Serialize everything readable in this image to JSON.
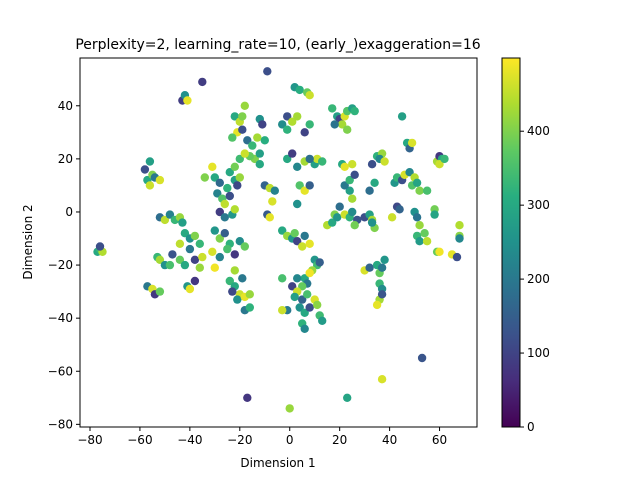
{
  "chart_data": {
    "type": "scatter",
    "title": "Perplexity=2, learning_rate=10, (early_)exaggeration=16",
    "xlabel": "Dimension 1",
    "ylabel": "Dimension 2",
    "xlim": [
      -84,
      75
    ],
    "ylim": [
      -81,
      58
    ],
    "xticks": [
      -80,
      -60,
      -40,
      -20,
      0,
      20,
      40,
      60
    ],
    "yticks": [
      -80,
      -60,
      -40,
      -20,
      0,
      20,
      40
    ],
    "colorbar": {
      "ticks": [
        0,
        100,
        200,
        300,
        400
      ],
      "range": [
        0,
        499
      ],
      "colormap": "viridis"
    },
    "grid": false,
    "point_color_encoding": "point index (0-499)",
    "points": [
      {
        "x": -77,
        "y": -15,
        "v": 300
      },
      {
        "x": -76,
        "y": -14,
        "v": 330
      },
      {
        "x": -75,
        "y": -15,
        "v": 440
      },
      {
        "x": -76,
        "y": -13,
        "v": 120
      },
      {
        "x": -58,
        "y": 16,
        "v": 120
      },
      {
        "x": -57,
        "y": 12,
        "v": 300
      },
      {
        "x": -56,
        "y": 10,
        "v": 460
      },
      {
        "x": -55,
        "y": 14,
        "v": 400
      },
      {
        "x": -56,
        "y": 19,
        "v": 280
      },
      {
        "x": -54,
        "y": 13,
        "v": 200
      },
      {
        "x": -52,
        "y": 12,
        "v": 470
      },
      {
        "x": -57,
        "y": -28,
        "v": 200
      },
      {
        "x": -55,
        "y": -29,
        "v": 470
      },
      {
        "x": -54,
        "y": -31,
        "v": 80
      },
      {
        "x": -52,
        "y": -30,
        "v": 380
      },
      {
        "x": -53,
        "y": -17,
        "v": 330
      },
      {
        "x": -52,
        "y": -18,
        "v": 430
      },
      {
        "x": -50,
        "y": -20,
        "v": 250
      },
      {
        "x": -48,
        "y": -20,
        "v": 350
      },
      {
        "x": -52,
        "y": -2,
        "v": 180
      },
      {
        "x": -50,
        "y": -3,
        "v": 450
      },
      {
        "x": -48,
        "y": -1,
        "v": 220
      },
      {
        "x": -46,
        "y": -3,
        "v": 330
      },
      {
        "x": -44,
        "y": -2,
        "v": 420
      },
      {
        "x": -43,
        "y": -4,
        "v": 280
      },
      {
        "x": -47,
        "y": -16,
        "v": 130
      },
      {
        "x": -43,
        "y": 42,
        "v": 90
      },
      {
        "x": -42,
        "y": 44,
        "v": 250
      },
      {
        "x": -41,
        "y": 42,
        "v": 480
      },
      {
        "x": -35,
        "y": 49,
        "v": 90
      },
      {
        "x": -42,
        "y": -8,
        "v": 300
      },
      {
        "x": -40,
        "y": -10,
        "v": 250
      },
      {
        "x": -38,
        "y": -9,
        "v": 400
      },
      {
        "x": -36,
        "y": -12,
        "v": 330
      },
      {
        "x": -44,
        "y": -12,
        "v": 450
      },
      {
        "x": -40,
        "y": -14,
        "v": 200
      },
      {
        "x": -38,
        "y": -18,
        "v": 100
      },
      {
        "x": -35,
        "y": -17,
        "v": 460
      },
      {
        "x": -44,
        "y": -18,
        "v": 380
      },
      {
        "x": -42,
        "y": -20,
        "v": 300
      },
      {
        "x": -36,
        "y": -21,
        "v": 420
      },
      {
        "x": -41,
        "y": -28,
        "v": 260
      },
      {
        "x": -40,
        "y": -29,
        "v": 480
      },
      {
        "x": -38,
        "y": -26,
        "v": 80
      },
      {
        "x": -34,
        "y": 13,
        "v": 400
      },
      {
        "x": -31,
        "y": 17,
        "v": 480
      },
      {
        "x": -30,
        "y": 13,
        "v": 300
      },
      {
        "x": -28,
        "y": 11,
        "v": 170
      },
      {
        "x": -29,
        "y": 7,
        "v": 220
      },
      {
        "x": -27,
        "y": 5,
        "v": 360
      },
      {
        "x": -26,
        "y": 3,
        "v": 450
      },
      {
        "x": -24,
        "y": 6,
        "v": 120
      },
      {
        "x": -28,
        "y": 0,
        "v": 90
      },
      {
        "x": -26,
        "y": -2,
        "v": 200
      },
      {
        "x": -23,
        "y": -1,
        "v": 260
      },
      {
        "x": -22,
        "y": 1,
        "v": 440
      },
      {
        "x": -25,
        "y": 9,
        "v": 320
      },
      {
        "x": -22,
        "y": 12,
        "v": 280
      },
      {
        "x": -21,
        "y": 10,
        "v": 110
      },
      {
        "x": -20,
        "y": 13,
        "v": 420
      },
      {
        "x": -24,
        "y": 15,
        "v": 300
      },
      {
        "x": -22,
        "y": 17,
        "v": 390
      },
      {
        "x": -30,
        "y": -7,
        "v": 260
      },
      {
        "x": -28,
        "y": -10,
        "v": 400
      },
      {
        "x": -26,
        "y": -8,
        "v": 150
      },
      {
        "x": -24,
        "y": -12,
        "v": 320
      },
      {
        "x": -31,
        "y": -15,
        "v": 470
      },
      {
        "x": -28,
        "y": -17,
        "v": 220
      },
      {
        "x": -25,
        "y": -14,
        "v": 350
      },
      {
        "x": -22,
        "y": -16,
        "v": 80
      },
      {
        "x": -30,
        "y": -21,
        "v": 490
      },
      {
        "x": -22,
        "y": -22,
        "v": 430
      },
      {
        "x": -20,
        "y": -11,
        "v": 240
      },
      {
        "x": -18,
        "y": -13,
        "v": 380
      },
      {
        "x": -24,
        "y": -26,
        "v": 330
      },
      {
        "x": -22,
        "y": -28,
        "v": 300
      },
      {
        "x": -20,
        "y": -31,
        "v": 460
      },
      {
        "x": -21,
        "y": -33,
        "v": 250
      },
      {
        "x": -18,
        "y": -32,
        "v": 480
      },
      {
        "x": -16,
        "y": -31,
        "v": 420
      },
      {
        "x": -23,
        "y": -30,
        "v": 110
      },
      {
        "x": -19,
        "y": -25,
        "v": 200
      },
      {
        "x": -18,
        "y": -37,
        "v": 200
      },
      {
        "x": -16,
        "y": -36,
        "v": 320
      },
      {
        "x": -17,
        "y": -70,
        "v": 80
      },
      {
        "x": -22,
        "y": 36,
        "v": 300
      },
      {
        "x": -20,
        "y": 34,
        "v": 450
      },
      {
        "x": -18,
        "y": 40,
        "v": 420
      },
      {
        "x": -19,
        "y": 36,
        "v": 400
      },
      {
        "x": -21,
        "y": 30,
        "v": 480
      },
      {
        "x": -19,
        "y": 31,
        "v": 120
      },
      {
        "x": -17,
        "y": 27,
        "v": 180
      },
      {
        "x": -23,
        "y": 28,
        "v": 360
      },
      {
        "x": -15,
        "y": 25,
        "v": 330
      },
      {
        "x": -14,
        "y": 20,
        "v": 400
      },
      {
        "x": -12,
        "y": 22,
        "v": 280
      },
      {
        "x": -16,
        "y": 21,
        "v": 380
      },
      {
        "x": -12,
        "y": 35,
        "v": 250
      },
      {
        "x": -11,
        "y": 33,
        "v": 100
      },
      {
        "x": -13,
        "y": 28,
        "v": 430
      },
      {
        "x": -10,
        "y": 27,
        "v": 310
      },
      {
        "x": -20,
        "y": 20,
        "v": 340
      },
      {
        "x": -18,
        "y": 22,
        "v": 460
      },
      {
        "x": -9,
        "y": 53,
        "v": 120
      },
      {
        "x": -10,
        "y": 10,
        "v": 160
      },
      {
        "x": -8,
        "y": 9,
        "v": 450
      },
      {
        "x": -6,
        "y": 8,
        "v": 220
      },
      {
        "x": -7,
        "y": 4,
        "v": 470
      },
      {
        "x": -9,
        "y": -1,
        "v": 140
      },
      {
        "x": -8,
        "y": -2,
        "v": 480
      },
      {
        "x": -12,
        "y": 18,
        "v": 300
      },
      {
        "x": -3,
        "y": 33,
        "v": 240
      },
      {
        "x": -1,
        "y": 36,
        "v": 120
      },
      {
        "x": 1,
        "y": 34,
        "v": 440
      },
      {
        "x": -1,
        "y": 31,
        "v": 320
      },
      {
        "x": 2,
        "y": 47,
        "v": 260
      },
      {
        "x": 4,
        "y": 46,
        "v": 310
      },
      {
        "x": 7,
        "y": 45,
        "v": 380
      },
      {
        "x": 8,
        "y": 44,
        "v": 460
      },
      {
        "x": 3,
        "y": 36,
        "v": 430
      },
      {
        "x": 6,
        "y": 30,
        "v": 100
      },
      {
        "x": 8,
        "y": 33,
        "v": 330
      },
      {
        "x": -1,
        "y": 20,
        "v": 300
      },
      {
        "x": 1,
        "y": 22,
        "v": 90
      },
      {
        "x": 3,
        "y": 17,
        "v": 230
      },
      {
        "x": 6,
        "y": 19,
        "v": 430
      },
      {
        "x": 10,
        "y": 18,
        "v": 280
      },
      {
        "x": 11,
        "y": 20,
        "v": 460
      },
      {
        "x": 13,
        "y": 19,
        "v": 330
      },
      {
        "x": 8,
        "y": 20,
        "v": 180
      },
      {
        "x": 4,
        "y": 10,
        "v": 360
      },
      {
        "x": 6,
        "y": 8,
        "v": 480
      },
      {
        "x": 8,
        "y": 10,
        "v": 150
      },
      {
        "x": 3,
        "y": 3,
        "v": 250
      },
      {
        "x": -3,
        "y": -7,
        "v": 300
      },
      {
        "x": -1,
        "y": -9,
        "v": 420
      },
      {
        "x": 1,
        "y": -10,
        "v": 260
      },
      {
        "x": 3,
        "y": -11,
        "v": 100
      },
      {
        "x": 5,
        "y": -13,
        "v": 460
      },
      {
        "x": 2,
        "y": -8,
        "v": 380
      },
      {
        "x": 6,
        "y": -9,
        "v": 200
      },
      {
        "x": 8,
        "y": -12,
        "v": 480
      },
      {
        "x": 10,
        "y": -18,
        "v": 260
      },
      {
        "x": 11,
        "y": -20,
        "v": 340
      },
      {
        "x": 12,
        "y": -19,
        "v": 150
      },
      {
        "x": 9,
        "y": -22,
        "v": 420
      },
      {
        "x": 6,
        "y": -25,
        "v": 300
      },
      {
        "x": 7,
        "y": -27,
        "v": 200
      },
      {
        "x": 8,
        "y": -23,
        "v": 490
      },
      {
        "x": 5,
        "y": -28,
        "v": 380
      },
      {
        "x": 3,
        "y": -25,
        "v": 230
      },
      {
        "x": 1,
        "y": -28,
        "v": 100
      },
      {
        "x": 3,
        "y": -30,
        "v": 460
      },
      {
        "x": 2,
        "y": -32,
        "v": 280
      },
      {
        "x": 5,
        "y": -33,
        "v": 160
      },
      {
        "x": 7,
        "y": -31,
        "v": 350
      },
      {
        "x": 4,
        "y": -36,
        "v": 250
      },
      {
        "x": 6,
        "y": -38,
        "v": 300
      },
      {
        "x": 8,
        "y": -36,
        "v": 120
      },
      {
        "x": 10,
        "y": -33,
        "v": 470
      },
      {
        "x": 11,
        "y": -35,
        "v": 410
      },
      {
        "x": 5,
        "y": -42,
        "v": 320
      },
      {
        "x": 6,
        "y": -44,
        "v": 230
      },
      {
        "x": 12,
        "y": -39,
        "v": 340
      },
      {
        "x": 13,
        "y": -41,
        "v": 270
      },
      {
        "x": -3,
        "y": -25,
        "v": 350
      },
      {
        "x": -1,
        "y": -37,
        "v": 200
      },
      {
        "x": -3,
        "y": -37,
        "v": 460
      },
      {
        "x": 0,
        "y": -74,
        "v": 420
      },
      {
        "x": 15,
        "y": -5,
        "v": 440
      },
      {
        "x": 17,
        "y": -4,
        "v": 300
      },
      {
        "x": 18,
        "y": -1,
        "v": 400
      },
      {
        "x": 19,
        "y": -2,
        "v": 260
      },
      {
        "x": 20,
        "y": 2,
        "v": 180
      },
      {
        "x": 22,
        "y": -1,
        "v": 460
      },
      {
        "x": 24,
        "y": -2,
        "v": 320
      },
      {
        "x": 25,
        "y": 0,
        "v": 240
      },
      {
        "x": 27,
        "y": -3,
        "v": 130
      },
      {
        "x": 26,
        "y": -5,
        "v": 390
      },
      {
        "x": 25,
        "y": 5,
        "v": 430
      },
      {
        "x": 24,
        "y": 8,
        "v": 280
      },
      {
        "x": 22,
        "y": 10,
        "v": 200
      },
      {
        "x": 24,
        "y": 12,
        "v": 330
      },
      {
        "x": 26,
        "y": 14,
        "v": 120
      },
      {
        "x": 25,
        "y": 18,
        "v": 460
      },
      {
        "x": 21,
        "y": 18,
        "v": 300
      },
      {
        "x": 22,
        "y": 17,
        "v": 480
      },
      {
        "x": 17,
        "y": 39,
        "v": 330
      },
      {
        "x": 19,
        "y": 36,
        "v": 280
      },
      {
        "x": 20,
        "y": 35,
        "v": 100
      },
      {
        "x": 21,
        "y": 33,
        "v": 430
      },
      {
        "x": 22,
        "y": 36,
        "v": 470
      },
      {
        "x": 23,
        "y": 38,
        "v": 360
      },
      {
        "x": 25,
        "y": 39,
        "v": 280
      },
      {
        "x": 26,
        "y": 38,
        "v": 320
      },
      {
        "x": 18,
        "y": 33,
        "v": 190
      },
      {
        "x": 23,
        "y": 31,
        "v": 400
      },
      {
        "x": 30,
        "y": -2,
        "v": 120
      },
      {
        "x": 32,
        "y": -1,
        "v": 280
      },
      {
        "x": 33,
        "y": -3,
        "v": 430
      },
      {
        "x": 34,
        "y": -6,
        "v": 400
      },
      {
        "x": 33,
        "y": -4,
        "v": 250
      },
      {
        "x": 32,
        "y": 8,
        "v": 180
      },
      {
        "x": 34,
        "y": 11,
        "v": 300
      },
      {
        "x": 33,
        "y": 18,
        "v": 120
      },
      {
        "x": 35,
        "y": 21,
        "v": 320
      },
      {
        "x": 37,
        "y": 22,
        "v": 420
      },
      {
        "x": 36,
        "y": 20,
        "v": 230
      },
      {
        "x": 38,
        "y": 19,
        "v": 460
      },
      {
        "x": 30,
        "y": -22,
        "v": 470
      },
      {
        "x": 32,
        "y": -21,
        "v": 160
      },
      {
        "x": 35,
        "y": -20,
        "v": 300
      },
      {
        "x": 36,
        "y": -23,
        "v": 380
      },
      {
        "x": 37,
        "y": -21,
        "v": 200
      },
      {
        "x": 38,
        "y": -18,
        "v": 260
      },
      {
        "x": 36,
        "y": -27,
        "v": 330
      },
      {
        "x": 37,
        "y": -29,
        "v": 240
      },
      {
        "x": 36,
        "y": -33,
        "v": 430
      },
      {
        "x": 35,
        "y": -35,
        "v": 480
      },
      {
        "x": 37,
        "y": -31,
        "v": 130
      },
      {
        "x": 23,
        "y": -70,
        "v": 290
      },
      {
        "x": 37,
        "y": -63,
        "v": 470
      },
      {
        "x": 41,
        "y": -2,
        "v": 460
      },
      {
        "x": 43,
        "y": 2,
        "v": 110
      },
      {
        "x": 44,
        "y": 1,
        "v": 160
      },
      {
        "x": 42,
        "y": 11,
        "v": 260
      },
      {
        "x": 43,
        "y": 13,
        "v": 330
      },
      {
        "x": 45,
        "y": 12,
        "v": 120
      },
      {
        "x": 46,
        "y": 14,
        "v": 470
      },
      {
        "x": 48,
        "y": 15,
        "v": 230
      },
      {
        "x": 49,
        "y": 10,
        "v": 360
      },
      {
        "x": 50,
        "y": 13,
        "v": 440
      },
      {
        "x": 51,
        "y": 11,
        "v": 290
      },
      {
        "x": 52,
        "y": 8,
        "v": 400
      },
      {
        "x": 45,
        "y": 36,
        "v": 280
      },
      {
        "x": 47,
        "y": 26,
        "v": 300
      },
      {
        "x": 48,
        "y": 24,
        "v": 160
      },
      {
        "x": 49,
        "y": 26,
        "v": 470
      },
      {
        "x": 50,
        "y": 0,
        "v": 250
      },
      {
        "x": 51,
        "y": -2,
        "v": 190
      },
      {
        "x": 52,
        "y": -5,
        "v": 420
      },
      {
        "x": 51,
        "y": -9,
        "v": 330
      },
      {
        "x": 52,
        "y": -11,
        "v": 270
      },
      {
        "x": 54,
        "y": -8,
        "v": 380
      },
      {
        "x": 55,
        "y": 8,
        "v": 350
      },
      {
        "x": 53,
        "y": -55,
        "v": 130
      },
      {
        "x": 55,
        "y": -11,
        "v": 450
      },
      {
        "x": 58,
        "y": 1,
        "v": 390
      },
      {
        "x": 58,
        "y": -1,
        "v": 290
      },
      {
        "x": 59,
        "y": -15,
        "v": 380
      },
      {
        "x": 60,
        "y": -15,
        "v": 490
      },
      {
        "x": 59,
        "y": 19,
        "v": 430
      },
      {
        "x": 60,
        "y": 21,
        "v": 80
      },
      {
        "x": 61,
        "y": 20,
        "v": 300
      },
      {
        "x": 60,
        "y": 18,
        "v": 460
      },
      {
        "x": 62,
        "y": 20,
        "v": 330
      },
      {
        "x": 65,
        "y": -16,
        "v": 480
      },
      {
        "x": 67,
        "y": -17,
        "v": 120
      },
      {
        "x": 68,
        "y": -9,
        "v": 410
      },
      {
        "x": 68,
        "y": -5,
        "v": 440
      },
      {
        "x": 68,
        "y": -10,
        "v": 230
      }
    ]
  }
}
